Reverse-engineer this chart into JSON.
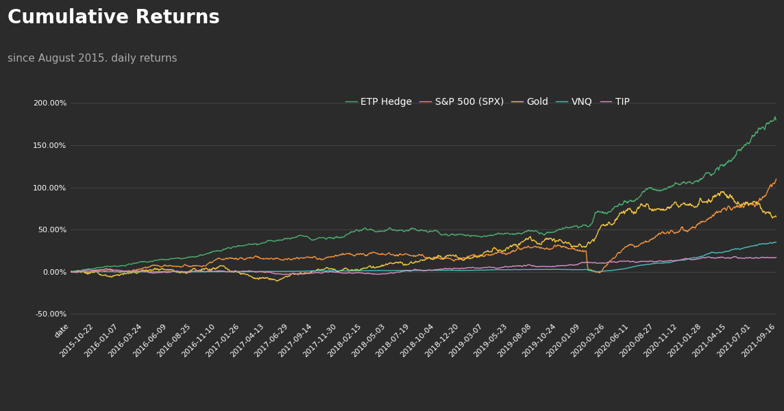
{
  "title": "Cumulative Returns",
  "subtitle": "since August 2015. daily returns",
  "background_color": "#2b2b2b",
  "text_color": "#ffffff",
  "subtitle_color": "#aaaaaa",
  "grid_color": "#666666",
  "series_colors": {
    "ETP Hedge": "#4caf72",
    "S&P 500 (SPX)": "#f5923e",
    "Gold": "#f5c842",
    "VNQ": "#4bbfbf",
    "TIP": "#d98fc7"
  },
  "xlabel_dates": [
    "date",
    "2015-10-22",
    "2016-01-07",
    "2016-03-24",
    "2016-06-09",
    "2016-08-25",
    "2016-11-10",
    "2017-01-26",
    "2017-04-13",
    "2017-06-29",
    "2017-09-14",
    "2017-11-30",
    "2018-02-15",
    "2018-05-03",
    "2018-07-19",
    "2018-10-04",
    "2018-12-20",
    "2019-03-07",
    "2019-05-23",
    "2019-08-08",
    "2019-10-24",
    "2020-01-09",
    "2020-03-26",
    "2020-06-11",
    "2020-08-27",
    "2020-11-12",
    "2021-01-28",
    "2021-04-15",
    "2021-07-01",
    "2021-09-16"
  ],
  "yticks": [
    -0.5,
    0.0,
    0.5,
    1.0,
    1.5,
    2.0
  ],
  "ylim_low": -0.58,
  "ylim_high": 2.15,
  "title_fontsize": 20,
  "subtitle_fontsize": 11,
  "legend_fontsize": 10,
  "tick_fontsize": 8,
  "linewidth": 1.0
}
